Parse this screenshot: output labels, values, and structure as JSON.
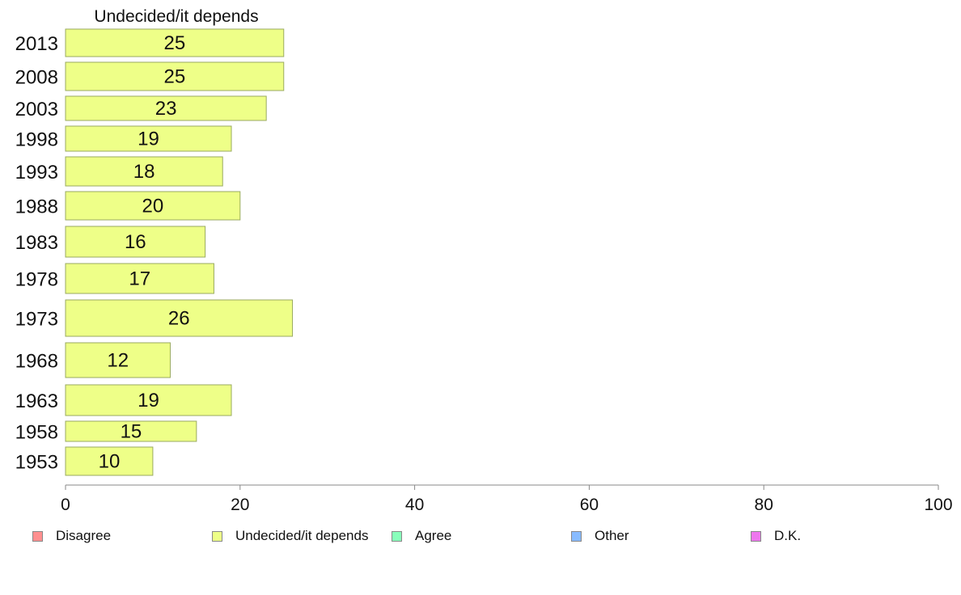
{
  "chart_data": {
    "type": "bar",
    "orientation": "horizontal",
    "title": "Undecided/it depends",
    "categories": [
      "2013",
      "2008",
      "2003",
      "1998",
      "1993",
      "1988",
      "1983",
      "1978",
      "1973",
      "1968",
      "1963",
      "1958",
      "1953"
    ],
    "values": [
      25,
      25,
      23,
      19,
      18,
      20,
      16,
      17,
      26,
      12,
      19,
      15,
      10
    ],
    "series": [
      {
        "name": "Undecided/it depends",
        "values": [
          25,
          25,
          23,
          19,
          18,
          20,
          16,
          17,
          26,
          12,
          19,
          15,
          10
        ]
      }
    ],
    "xlim": [
      0,
      100
    ],
    "xticks": [
      "0",
      "20",
      "40",
      "60",
      "80",
      "100"
    ],
    "grid": false,
    "bar_color": "#eeff88",
    "bar_border_color": "#9aaa60",
    "legend_position": "bottom",
    "legend": [
      {
        "label": "Disagree",
        "color": "#ff8f8f"
      },
      {
        "label": "Undecided/it depends",
        "color": "#eeff88"
      },
      {
        "label": "Agree",
        "color": "#88ffbb"
      },
      {
        "label": "Other",
        "color": "#88bbff"
      },
      {
        "label": "D.K.",
        "color": "#ee77ee"
      }
    ]
  }
}
